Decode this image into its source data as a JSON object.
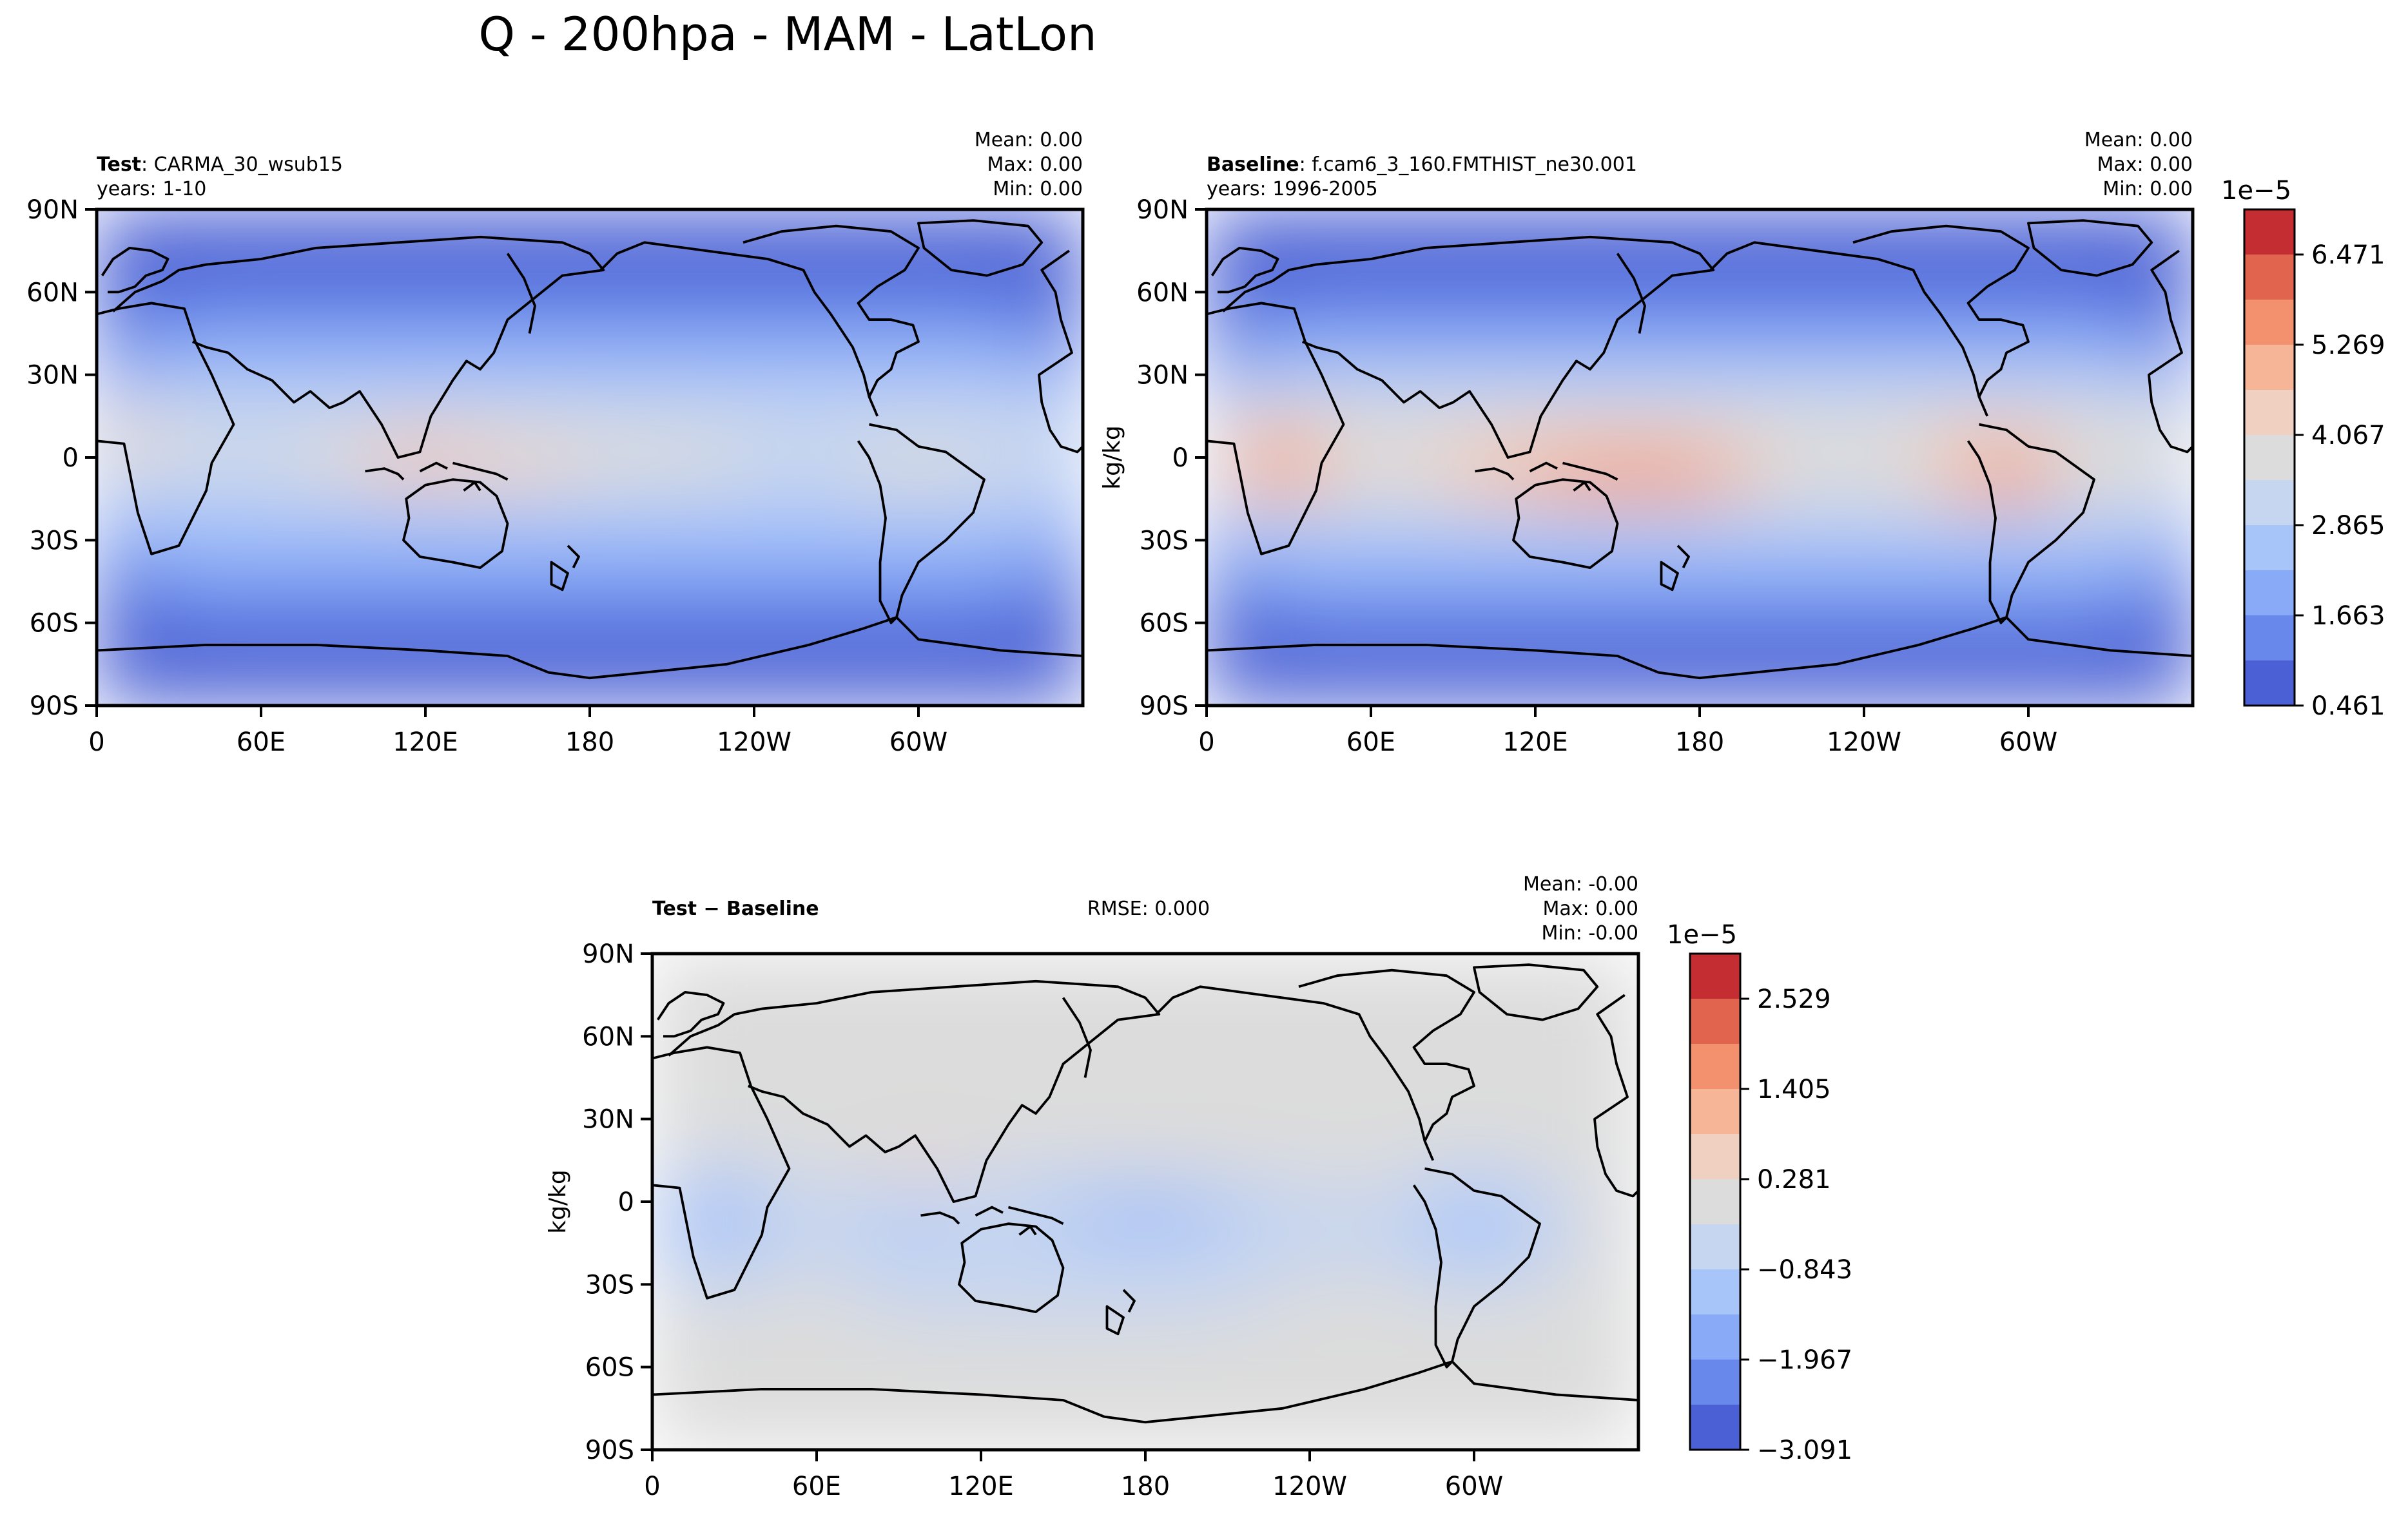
{
  "figure": {
    "title": "Q - 200hpa - MAM - LatLon"
  },
  "chart_data": [
    {
      "type": "heatmap",
      "id": "test",
      "label_bold": "Test",
      "label_rest": ": CARMA_30_wsub15",
      "years": "years: 1-10",
      "stats": [
        "Mean:  0.00",
        "Max:  0.00",
        "Min:  0.00"
      ],
      "rmse": "",
      "ylabel": "",
      "xlim": [
        0,
        360
      ],
      "ylim": [
        -90,
        90
      ],
      "xticks": [
        "0",
        "60E",
        "120E",
        "180",
        "120W",
        "60W"
      ],
      "yticks": [
        "90N",
        "60N",
        "30N",
        "0",
        "30S",
        "60S",
        "90S"
      ]
    },
    {
      "type": "heatmap",
      "id": "baseline",
      "label_bold": "Baseline",
      "label_rest": ": f.cam6_3_160.FMTHIST_ne30.001",
      "years": "years: 1996-2005",
      "stats": [
        "Mean:  0.00",
        "Max:  0.00",
        "Min:  0.00"
      ],
      "rmse": "",
      "ylabel": "kg/kg",
      "xlim": [
        0,
        360
      ],
      "ylim": [
        -90,
        90
      ],
      "xticks": [
        "0",
        "60E",
        "120E",
        "180",
        "120W",
        "60W"
      ],
      "yticks": [
        "90N",
        "60N",
        "30N",
        "0",
        "30S",
        "60S",
        "90S"
      ],
      "colorbar": {
        "exponent": "1e−5",
        "ticks": [
          "6.471",
          "5.269",
          "4.067",
          "2.865",
          "1.663",
          "0.461"
        ],
        "colors": [
          "#c42d32",
          "#e0644e",
          "#f3906d",
          "#f6b597",
          "#f0d1c1",
          "#dcdcdc",
          "#c6d5f0",
          "#a8c5fa",
          "#89abf7",
          "#6888ec",
          "#4b60d4"
        ]
      }
    },
    {
      "type": "heatmap",
      "id": "diff",
      "label_bold": "Test − Baseline",
      "label_rest": "",
      "years": "",
      "stats": [
        "Mean: -0.00",
        "Max:  0.00",
        "Min: -0.00"
      ],
      "rmse": "RMSE: 0.000",
      "ylabel": "kg/kg",
      "xlim": [
        0,
        360
      ],
      "ylim": [
        -90,
        90
      ],
      "xticks": [
        "0",
        "60E",
        "120E",
        "180",
        "120W",
        "60W"
      ],
      "yticks": [
        "90N",
        "60N",
        "30N",
        "0",
        "30S",
        "60S",
        "90S"
      ],
      "colorbar": {
        "exponent": "1e−5",
        "ticks": [
          "2.529",
          "1.405",
          "0.281",
          "−0.843",
          "−1.967",
          "−3.091"
        ],
        "colors": [
          "#c42d32",
          "#e0644e",
          "#f3906d",
          "#f6b597",
          "#f0d1c1",
          "#dcdcdc",
          "#c6d5f0",
          "#a8c5fa",
          "#89abf7",
          "#6888ec",
          "#4b60d4"
        ]
      }
    }
  ]
}
